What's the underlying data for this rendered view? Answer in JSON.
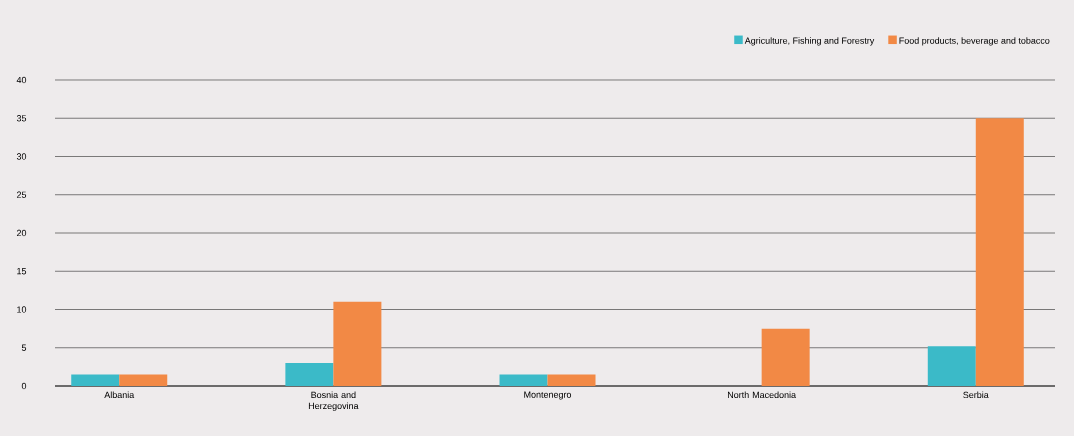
{
  "chart_data": {
    "type": "bar",
    "categories": [
      "Albania",
      "Bosnia and Herzegovina",
      "Montenegro",
      "North Macedonia",
      "Serbia"
    ],
    "series": [
      {
        "name": "Agriculture, Fishing and Forestry",
        "color": "#3bbac8",
        "values": [
          1.5,
          3,
          1.5,
          0,
          5.2
        ]
      },
      {
        "name": "Food products, beverage and tobacco",
        "color": "#f28945",
        "values": [
          1.5,
          11,
          1.5,
          7.5,
          35
        ]
      }
    ],
    "ylim": [
      0,
      40
    ],
    "yticks": [
      0,
      5,
      10,
      15,
      20,
      25,
      30,
      35,
      40
    ],
    "grid": "y",
    "legend": "top right"
  }
}
